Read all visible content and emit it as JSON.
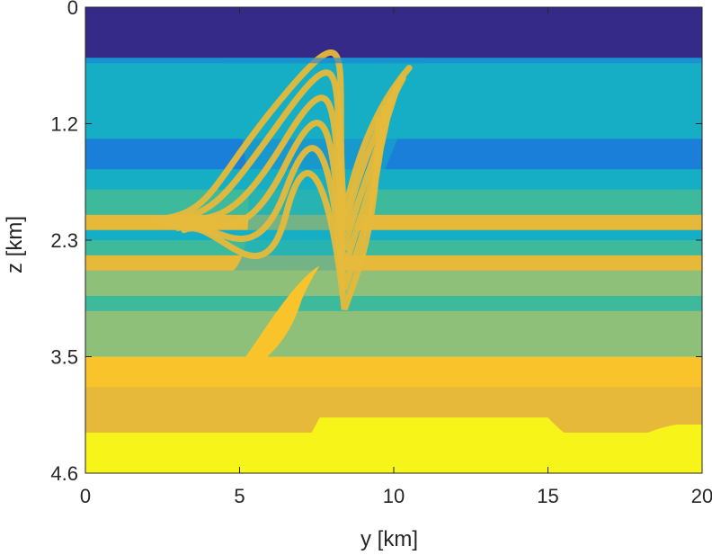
{
  "chart_data": {
    "type": "heatmap",
    "colormap": "parula",
    "colors": {
      "water": "#352a87",
      "low": "#1a7fd8",
      "mid_low": "#16aec4",
      "mid": "#3db99c",
      "mid_high": "#8fc07a",
      "high": "#e6b93a",
      "orange": "#f9c42b",
      "max": "#f7f41a"
    },
    "xlabel": "y [km]",
    "ylabel": "z [km]",
    "xlim": [
      0,
      20
    ],
    "ylim": [
      0,
      4.6
    ],
    "y_reversed": true,
    "xticks": [
      {
        "value": 0,
        "label": "0"
      },
      {
        "value": 5,
        "label": "5"
      },
      {
        "value": 10,
        "label": "10"
      },
      {
        "value": 15,
        "label": "15"
      },
      {
        "value": 20,
        "label": "20"
      }
    ],
    "yticks": [
      {
        "value": 0,
        "label": "0"
      },
      {
        "value": 1.15,
        "label": "1.2"
      },
      {
        "value": 2.3,
        "label": "2.3"
      },
      {
        "value": 3.45,
        "label": "3.5"
      },
      {
        "value": 4.6,
        "label": "4.6"
      }
    ],
    "layers": [
      {
        "top": 0.0,
        "bottom": 0.5,
        "color": "water"
      },
      {
        "top": 0.5,
        "bottom": 0.75,
        "color": "mid_low"
      },
      {
        "top": 0.75,
        "bottom": 0.95,
        "color": "mid_low"
      },
      {
        "top": 0.95,
        "bottom": 1.15,
        "color": "mid_low"
      },
      {
        "top": 1.15,
        "bottom": 1.3,
        "color": "mid_low"
      },
      {
        "top": 1.3,
        "bottom": 1.6,
        "color": "low"
      },
      {
        "top": 1.6,
        "bottom": 1.8,
        "color": "mid_low"
      },
      {
        "top": 1.8,
        "bottom": 2.05,
        "color": "mid"
      },
      {
        "top": 2.05,
        "bottom": 2.2,
        "color": "high"
      },
      {
        "top": 2.2,
        "bottom": 2.3,
        "color": "mid_low"
      },
      {
        "top": 2.3,
        "bottom": 2.45,
        "color": "mid"
      },
      {
        "top": 2.45,
        "bottom": 2.6,
        "color": "high"
      },
      {
        "top": 2.6,
        "bottom": 2.85,
        "color": "mid_high"
      },
      {
        "top": 2.85,
        "bottom": 3.0,
        "color": "mid"
      },
      {
        "top": 3.0,
        "bottom": 3.3,
        "color": "mid_high"
      },
      {
        "top": 3.3,
        "bottom": 3.45,
        "color": "mid_high"
      },
      {
        "top": 3.45,
        "bottom": 3.75,
        "color": "orange"
      },
      {
        "top": 3.75,
        "bottom": 3.95,
        "color": "high"
      },
      {
        "top": 3.95,
        "bottom": 4.2,
        "color": "high"
      },
      {
        "top": 4.2,
        "bottom": 4.6,
        "color": "max"
      }
    ],
    "fold": {
      "crest_y": 7.5,
      "base_y_left": 3.8,
      "base_y_right": 11.0,
      "top_z": 0.5,
      "bottom_z": 2.6
    },
    "salt": {
      "top_z": 2.55,
      "bottom_z": 3.7,
      "left_y": 4.5,
      "right_y": 7.6
    },
    "basement_bump": {
      "left_y": 6.8,
      "right_y": 15.5,
      "top_z": 4.05,
      "bottom_z": 4.5
    }
  }
}
